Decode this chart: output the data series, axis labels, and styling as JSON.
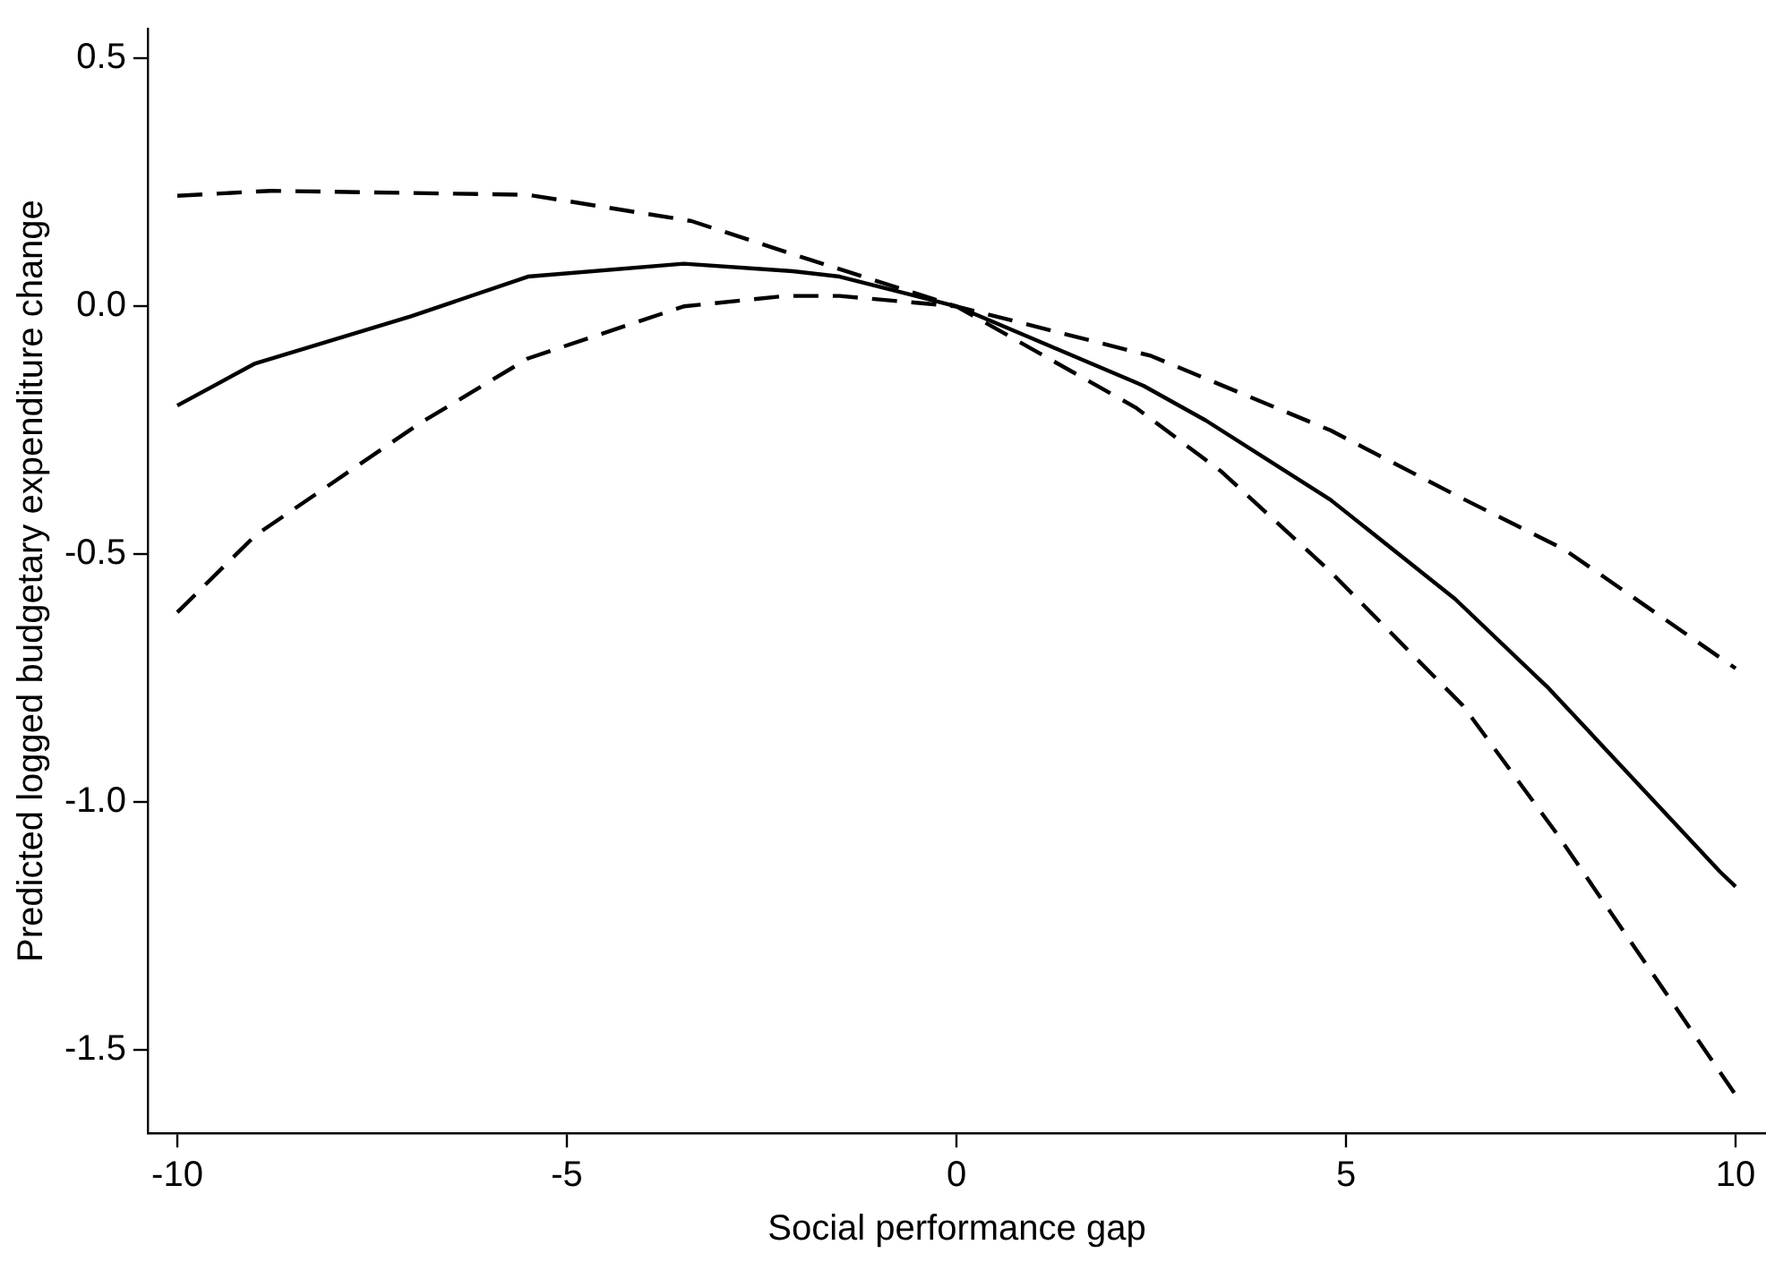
{
  "chart_data": {
    "type": "line",
    "xlabel": "Social performance gap",
    "ylabel": "Predicted logged budgetary expenditure change",
    "xlim": [
      -10.38,
      10.39
    ],
    "ylim": [
      -1.667,
      0.56
    ],
    "xticks": [
      {
        "value": -10,
        "label": "-10"
      },
      {
        "value": -5,
        "label": "-5"
      },
      0,
      5,
      10
    ],
    "yticks": [
      {
        "value": -1.5,
        "label": "-1.5"
      },
      {
        "value": -1,
        "label": "-1.0"
      },
      {
        "value": -0.5,
        "label": "-0.5"
      },
      {
        "value": 0,
        "label": "0.0"
      },
      0.5
    ],
    "grid": false,
    "legend": false,
    "marker": "none",
    "series": [
      {
        "color": "#000000",
        "line_style": "solid",
        "x": [
          -10,
          -9,
          -7,
          -5.5,
          -3.5,
          -2.1,
          -1.5,
          0,
          2.4,
          3.2,
          4.8,
          6.4,
          7.6,
          9.8,
          10
        ],
        "values": [
          -0.2,
          -0.115,
          -0.02,
          0.06,
          0.086,
          0.071,
          0.06,
          0,
          -0.16,
          -0.23,
          -0.39,
          -0.59,
          -0.77,
          -1.14,
          -1.17
        ]
      },
      {
        "color": "#000000",
        "line_style": "dashed",
        "x": [
          -10,
          -8.8,
          -5.5,
          -3.4,
          -1.9,
          0,
          2.5,
          4.8,
          6.4,
          7.8,
          10
        ],
        "values": [
          0.223,
          0.233,
          0.225,
          0.172,
          0.095,
          0,
          -0.1,
          -0.25,
          -0.38,
          -0.49,
          -0.73
        ]
      },
      {
        "color": "#000000",
        "line_style": "dashed",
        "x": [
          -10,
          -9,
          -6.9,
          -5.5,
          -3.5,
          -2.2,
          -1.5,
          0,
          2.3,
          3.4,
          4.8,
          6.5,
          7.7,
          10
        ],
        "values": [
          -0.617,
          -0.462,
          -0.237,
          -0.105,
          0,
          0.021,
          0.021,
          0,
          -0.204,
          -0.333,
          -0.535,
          -0.805,
          -1.062,
          -1.59
        ]
      }
    ]
  }
}
